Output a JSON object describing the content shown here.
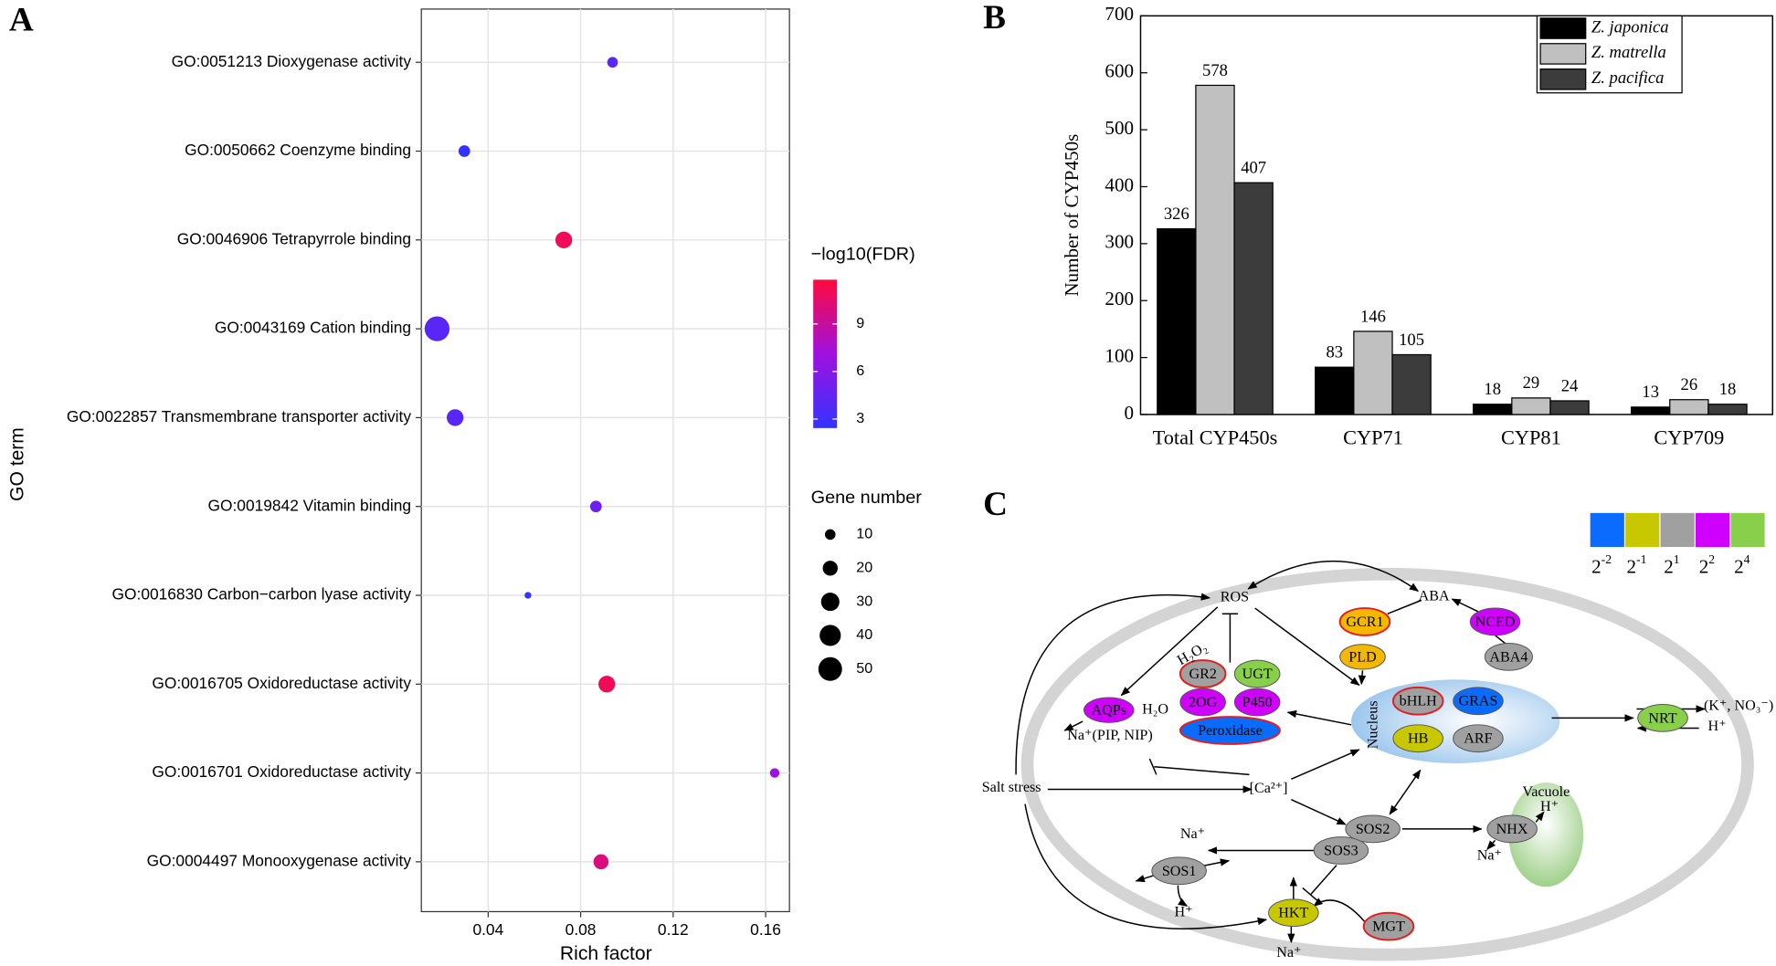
{
  "chart_data": [
    {
      "type": "dot",
      "panel_label": "A",
      "categories": [
        "GO:0051213 Dioxygenase activity",
        "GO:0050662 Coenzyme binding",
        "GO:0046906 Tetrapyrrole binding",
        "GO:0043169 Cation binding",
        "GO:0022857 Transmembrane transporter activity",
        "GO:0019842 Vitamin binding",
        "GO:0016830 Carbon−carbon lyase activity",
        "GO:0016705 Oxidoreductase activity",
        "GO:0016701 Oxidoreductase activity",
        "GO:0004497 Monooxygenase activity"
      ],
      "x": [
        0.0938,
        0.0297,
        0.0727,
        0.0179,
        0.0257,
        0.0866,
        0.0572,
        0.0913,
        0.1639,
        0.0888
      ],
      "size": [
        10,
        12,
        25,
        55,
        25,
        12,
        4,
        25,
        8,
        20
      ],
      "color_values": [
        4,
        2,
        11,
        4,
        4,
        5,
        1.5,
        11,
        7,
        10
      ],
      "xlim": [
        0.0111,
        0.1703
      ],
      "xticks": [
        0.04,
        0.08,
        0.12,
        0.16
      ],
      "xlabel": "Rich factor",
      "ylabel": "GO term",
      "grid": true,
      "colorbar": {
        "title": "−log10(FDR)",
        "lim": [
          2.43,
          11.79
        ],
        "ticks": [
          3,
          6,
          9
        ],
        "colors": [
          "#3333ff",
          "#a010e0",
          "#ff0a3c"
        ]
      },
      "size_legend": {
        "title": "Gene number",
        "values": [
          10,
          20,
          30,
          40,
          50
        ]
      }
    },
    {
      "type": "bar",
      "panel_label": "B",
      "categories": [
        "Total CYP450s",
        "CYP71",
        "CYP81",
        "CYP709"
      ],
      "series": [
        {
          "name": "Z. japonica",
          "color": "#000000",
          "values": [
            326,
            83,
            18,
            13
          ]
        },
        {
          "name": "Z. matrella",
          "color": "#c0c0c0",
          "values": [
            578,
            146,
            29,
            26
          ]
        },
        {
          "name": "Z. pacifica",
          "color": "#3c3c3c",
          "values": [
            407,
            105,
            24,
            18
          ]
        }
      ],
      "ylim": [
        0,
        700
      ],
      "yticks": [
        0,
        100,
        200,
        300,
        400,
        500,
        600,
        700
      ],
      "ylabel": "Number of CYP450s",
      "legend": "upper right"
    }
  ],
  "diagram": {
    "panel_label": "C",
    "scale": {
      "colors": [
        "#0a6cff",
        "#c8c800",
        "#a0a0a0",
        "#d000ff",
        "#88d04a"
      ],
      "labels": [
        {
          "base": "2",
          "exp": "-2"
        },
        {
          "base": "2",
          "exp": "-1"
        },
        {
          "base": "2",
          "exp": "1"
        },
        {
          "base": "2",
          "exp": "2"
        },
        {
          "base": "2",
          "exp": "4"
        }
      ]
    },
    "nodes": [
      {
        "label": "GCR1",
        "color": "#f5b800",
        "outline": true
      },
      {
        "label": "PLD",
        "color": "#f5b800",
        "outline": false
      },
      {
        "label": "NCED",
        "color": "#d000ff",
        "outline": false
      },
      {
        "label": "ABA4",
        "color": "#a0a0a0",
        "outline": false
      },
      {
        "label": "GR2",
        "color": "#a0a0a0",
        "outline": true
      },
      {
        "label": "UGT",
        "color": "#88d04a",
        "outline": false
      },
      {
        "label": "2OG",
        "color": "#d000ff",
        "outline": false
      },
      {
        "label": "P450",
        "color": "#d000ff",
        "outline": false
      },
      {
        "label": "Peroxidase",
        "color": "#0a6cff",
        "outline": true
      },
      {
        "label": "AQPs",
        "color": "#d000ff",
        "outline": false
      },
      {
        "label": "bHLH",
        "color": "#a0a0a0",
        "outline": true
      },
      {
        "label": "GRAS",
        "color": "#0a6cff",
        "outline": false
      },
      {
        "label": "HB",
        "color": "#c8c800",
        "outline": false
      },
      {
        "label": "ARF",
        "color": "#a0a0a0",
        "outline": false
      },
      {
        "label": "NRT",
        "color": "#88d04a",
        "outline": false
      },
      {
        "label": "SOS2",
        "color": "#a0a0a0",
        "outline": false
      },
      {
        "label": "SOS3",
        "color": "#a0a0a0",
        "outline": false
      },
      {
        "label": "SOS1",
        "color": "#a0a0a0",
        "outline": false
      },
      {
        "label": "NHX",
        "color": "#a0a0a0",
        "outline": false
      },
      {
        "label": "HKT",
        "color": "#c8c800",
        "outline": false
      },
      {
        "label": "MGT",
        "color": "#a0a0a0",
        "outline": true
      }
    ],
    "labels": [
      "ROS",
      "ABA",
      "H₂O₂",
      "H₂O",
      "Na⁺(PIP, NIP)",
      "Salt stress",
      "[Ca²⁺]",
      "Nucleus",
      "(K⁺, NO₃⁻)",
      "H⁺",
      "Vacuole",
      "H⁺",
      "Na⁺",
      "Na⁺",
      "H⁺",
      "Na⁺"
    ]
  }
}
